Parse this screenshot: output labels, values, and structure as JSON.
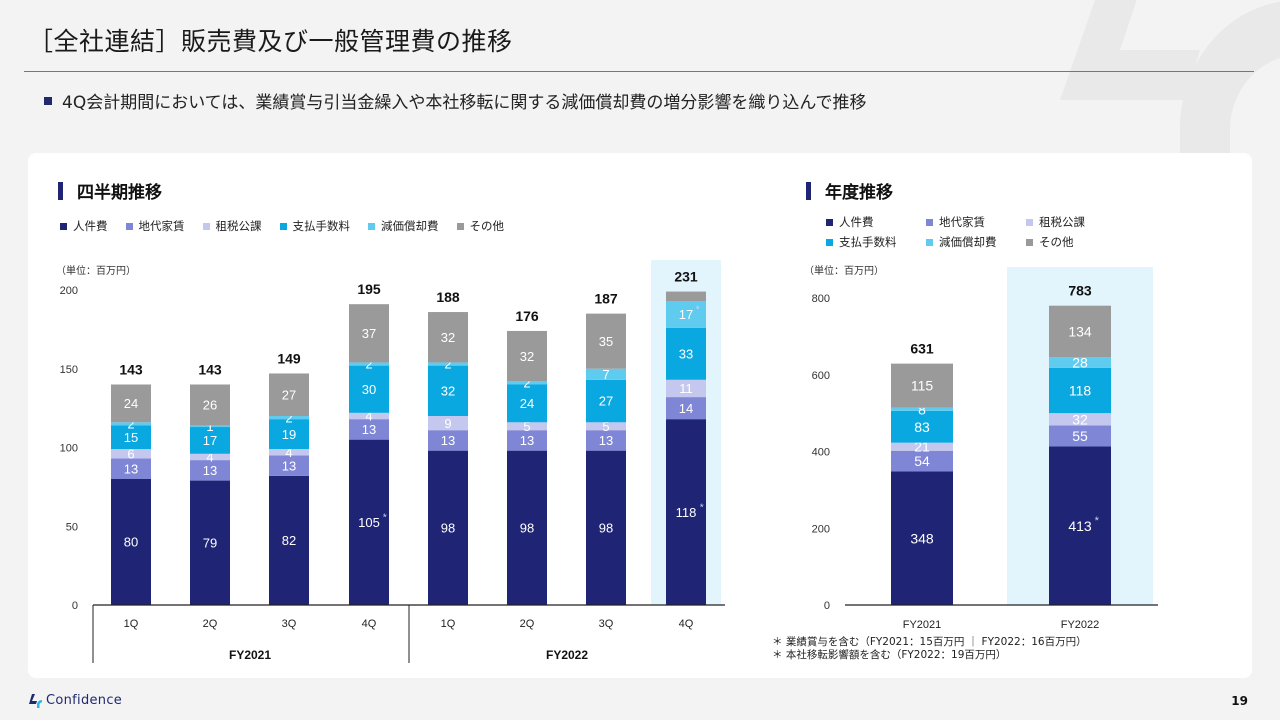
{
  "header": {
    "title": "［全社連結］販売費及び一般管理費の推移",
    "bullet": "4Q会計期間においては、業績賞与引当金繰入や本社移転に関する減価償却費の増分影響を織り込んで推移"
  },
  "colors": {
    "人件費": "#1f2474",
    "地代家賃": "#7f86d6",
    "租税公課": "#c5c8ee",
    "支払手数料": "#0aa8e0",
    "減価償却費": "#5ecbef",
    "その他": "#9a9a9a",
    "highlight": "#e3f5fc"
  },
  "quarterly": {
    "section_title": "四半期推移",
    "unit": "（単位：百万円）"
  },
  "annual": {
    "section_title": "年度推移",
    "unit": "（単位：百万円）"
  },
  "legend": [
    "人件費",
    "地代家賃",
    "租税公課",
    "支払手数料",
    "減価償却費",
    "その他"
  ],
  "footnotes": [
    "＊ 業績賞与を含む（FY2021：15百万円 ｜ FY2022：16百万円）",
    "＊ 本社移転影響額を含む（FY2022：19百万円）"
  ],
  "footer": {
    "brand": "Confidence",
    "page": "19"
  },
  "chart_data": [
    {
      "type": "bar",
      "stacked": true,
      "title": "四半期推移",
      "ylabel": "（単位：百万円）",
      "ylim": [
        0,
        200
      ],
      "yticks": [
        0,
        50,
        100,
        150,
        200
      ],
      "categories": [
        "1Q",
        "2Q",
        "3Q",
        "4Q",
        "1Q",
        "2Q",
        "3Q",
        "4Q"
      ],
      "groups": [
        {
          "label": "FY2021",
          "span": [
            0,
            3
          ]
        },
        {
          "label": "FY2022",
          "span": [
            4,
            7
          ]
        }
      ],
      "highlight_index": 7,
      "totals": [
        143,
        143,
        149,
        195,
        188,
        176,
        187,
        231
      ],
      "series": [
        {
          "name": "人件費",
          "values": [
            80,
            79,
            82,
            105,
            98,
            98,
            98,
            118
          ],
          "asterisk": [
            3,
            7
          ]
        },
        {
          "name": "地代家賃",
          "values": [
            13,
            13,
            13,
            13,
            13,
            13,
            13,
            14
          ]
        },
        {
          "name": "租税公課",
          "values": [
            6,
            4,
            4,
            4,
            9,
            5,
            5,
            11
          ]
        },
        {
          "name": "支払手数料",
          "values": [
            15,
            17,
            19,
            30,
            32,
            24,
            27,
            33
          ]
        },
        {
          "name": "減価償却費",
          "values": [
            2,
            1,
            2,
            2,
            2,
            2,
            7,
            17
          ],
          "asterisk": [
            6,
            7
          ]
        },
        {
          "name": "その他",
          "values": [
            24,
            26,
            27,
            37,
            32,
            32,
            35,
            null
          ]
        }
      ],
      "legend_position": "top-left",
      "grid": false
    },
    {
      "type": "bar",
      "stacked": true,
      "title": "年度推移",
      "ylabel": "（単位：百万円）",
      "ylim": [
        0,
        800
      ],
      "yticks": [
        0,
        200,
        400,
        600,
        800
      ],
      "categories": [
        "FY2021",
        "FY2022"
      ],
      "highlight_index": 1,
      "totals": [
        631,
        783
      ],
      "series": [
        {
          "name": "人件費",
          "values": [
            348,
            413
          ],
          "asterisk": [
            1
          ]
        },
        {
          "name": "地代家賃",
          "values": [
            54,
            55
          ]
        },
        {
          "name": "租税公課",
          "values": [
            21,
            32
          ]
        },
        {
          "name": "支払手数料",
          "values": [
            83,
            118
          ]
        },
        {
          "name": "減価償却費",
          "values": [
            8,
            28
          ],
          "asterisk": [
            1
          ]
        },
        {
          "name": "その他",
          "values": [
            115,
            134
          ]
        }
      ],
      "legend_position": "top-left",
      "grid": false
    }
  ]
}
